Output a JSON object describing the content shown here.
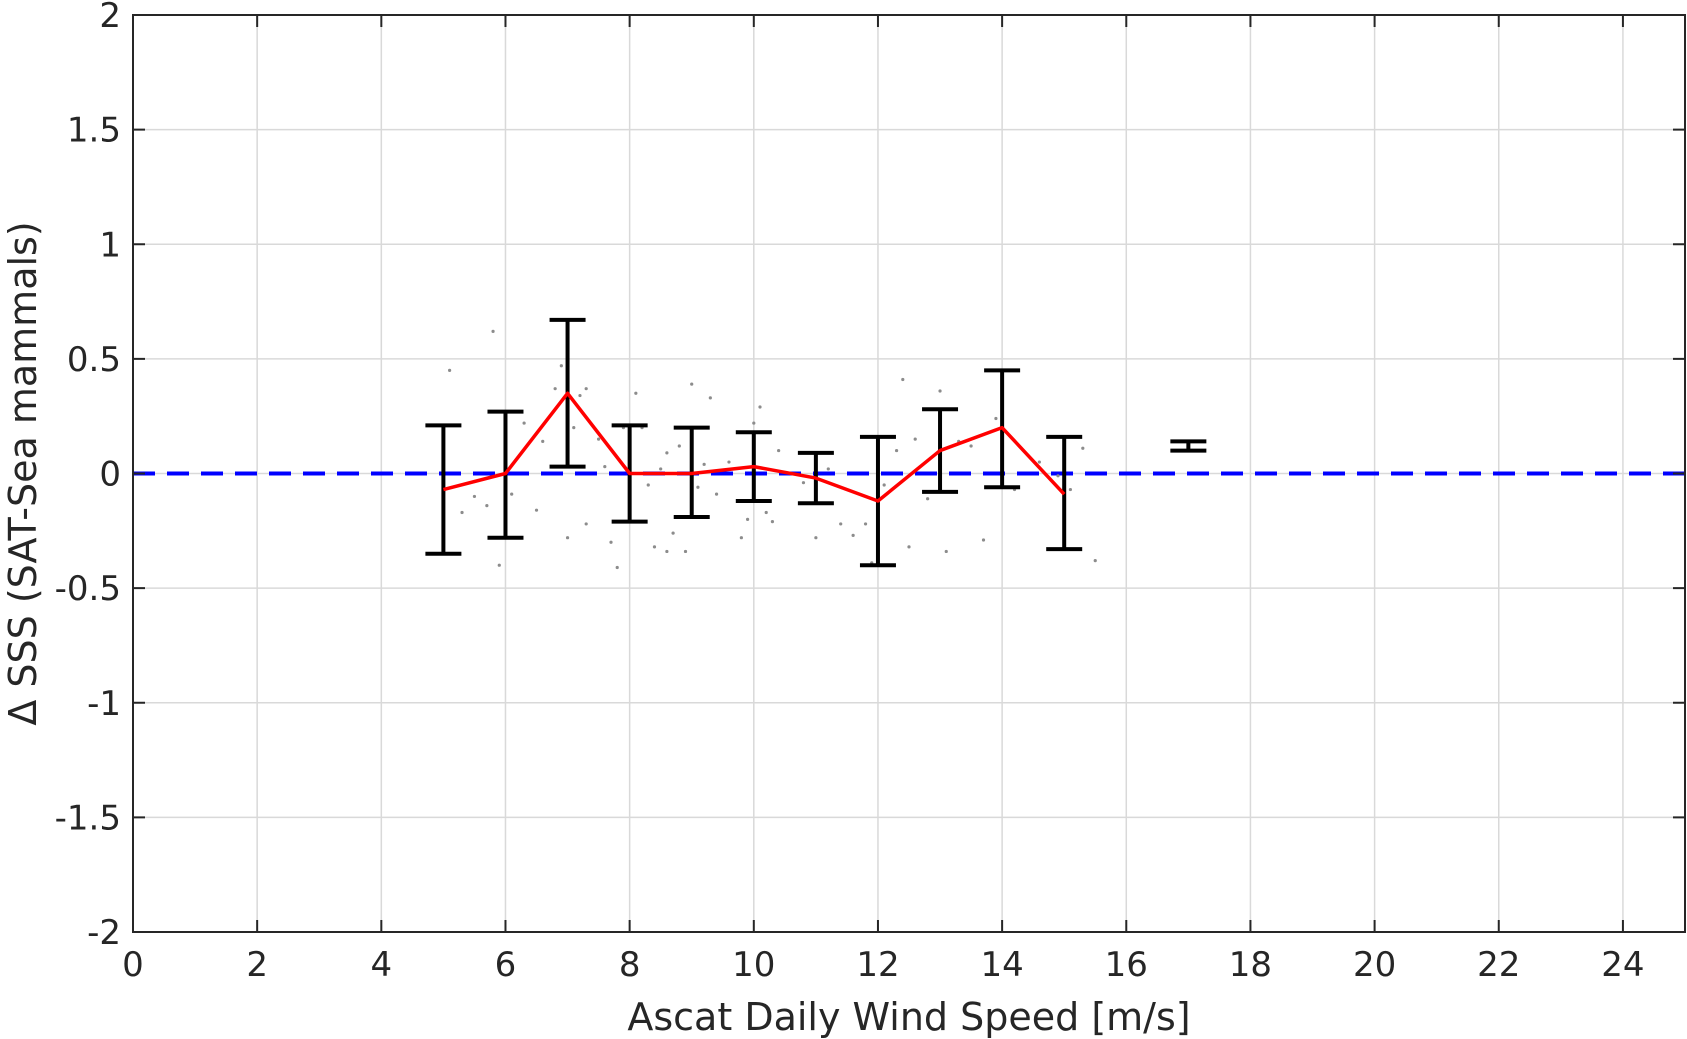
{
  "chart_data": {
    "type": "line",
    "xlabel": "Ascat Daily Wind Speed [m/s]",
    "ylabel": "Δ SSS (SAT-Sea mammals)",
    "xlim": [
      0,
      25
    ],
    "ylim": [
      -2,
      2
    ],
    "xticks": [
      0,
      2,
      4,
      6,
      8,
      10,
      12,
      14,
      16,
      18,
      20,
      22,
      24
    ],
    "yticks": [
      -2,
      -1.5,
      -1,
      -0.5,
      0,
      0.5,
      1,
      1.5,
      2
    ],
    "xtick_labels": [
      "0",
      "2",
      "4",
      "6",
      "8",
      "10",
      "12",
      "14",
      "16",
      "18",
      "20",
      "22",
      "24"
    ],
    "ytick_labels": [
      "-2",
      "-1.5",
      "-1",
      "-0.5",
      "0",
      "0.5",
      "1",
      "1.5",
      "2"
    ],
    "grid": true,
    "reference_line": {
      "y": 0,
      "color": "#0000ff",
      "style": "dashed"
    },
    "colors": {
      "mean": "#ff0000",
      "errorbar": "#000000",
      "scatter": "#8c8c8c",
      "reference": "#0000ff"
    },
    "series": [
      {
        "type": "errorbar",
        "x": [
          5,
          6,
          7,
          8,
          9,
          10,
          11,
          12,
          13,
          14,
          15,
          17
        ],
        "mean": [
          -0.07,
          0.0,
          0.35,
          0.0,
          0.0,
          0.03,
          -0.02,
          -0.12,
          0.1,
          0.2,
          -0.09,
          0.12
        ],
        "low": [
          -0.35,
          -0.28,
          0.03,
          -0.21,
          -0.19,
          -0.12,
          -0.13,
          -0.4,
          -0.08,
          -0.06,
          -0.33,
          0.1
        ],
        "high": [
          0.21,
          0.27,
          0.67,
          0.21,
          0.2,
          0.18,
          0.09,
          0.16,
          0.28,
          0.45,
          0.16,
          0.14
        ]
      },
      {
        "type": "line",
        "x": [
          5,
          6,
          7,
          8,
          9,
          10,
          11,
          12,
          13,
          14,
          15
        ],
        "y": [
          -0.07,
          0.0,
          0.35,
          0.0,
          0.0,
          0.03,
          -0.02,
          -0.12,
          0.1,
          0.2,
          -0.09
        ]
      },
      {
        "type": "scatter",
        "points": [
          [
            5.1,
            0.45
          ],
          [
            5.3,
            -0.17
          ],
          [
            5.5,
            -0.1
          ],
          [
            5.7,
            -0.14
          ],
          [
            5.8,
            0.62
          ],
          [
            5.9,
            -0.4
          ],
          [
            6.0,
            0.02
          ],
          [
            6.1,
            -0.09
          ],
          [
            6.3,
            0.22
          ],
          [
            6.5,
            -0.16
          ],
          [
            6.6,
            0.14
          ],
          [
            6.8,
            0.37
          ],
          [
            6.9,
            0.47
          ],
          [
            7.0,
            0.58
          ],
          [
            7.0,
            -0.28
          ],
          [
            7.1,
            0.2
          ],
          [
            7.2,
            0.34
          ],
          [
            7.3,
            0.37
          ],
          [
            7.3,
            -0.22
          ],
          [
            7.5,
            0.15
          ],
          [
            7.6,
            0.03
          ],
          [
            7.7,
            -0.3
          ],
          [
            7.8,
            -0.41
          ],
          [
            7.9,
            0.2
          ],
          [
            8.0,
            -0.09
          ],
          [
            8.1,
            0.35
          ],
          [
            8.2,
            0.2
          ],
          [
            8.3,
            -0.05
          ],
          [
            8.4,
            -0.32
          ],
          [
            8.5,
            0.02
          ],
          [
            8.6,
            -0.34
          ],
          [
            8.6,
            0.09
          ],
          [
            8.7,
            -0.26
          ],
          [
            8.8,
            0.12
          ],
          [
            8.9,
            -0.34
          ],
          [
            9.0,
            0.39
          ],
          [
            9.1,
            -0.06
          ],
          [
            9.2,
            0.04
          ],
          [
            9.3,
            0.33
          ],
          [
            9.4,
            -0.09
          ],
          [
            9.6,
            0.05
          ],
          [
            9.8,
            -0.28
          ],
          [
            9.9,
            -0.2
          ],
          [
            10.0,
            0.22
          ],
          [
            10.1,
            0.29
          ],
          [
            10.2,
            -0.17
          ],
          [
            10.3,
            -0.21
          ],
          [
            10.4,
            0.1
          ],
          [
            10.6,
            0.0
          ],
          [
            10.8,
            -0.04
          ],
          [
            11.0,
            -0.28
          ],
          [
            11.2,
            0.02
          ],
          [
            11.4,
            -0.22
          ],
          [
            11.6,
            -0.27
          ],
          [
            11.8,
            -0.22
          ],
          [
            11.9,
            -0.39
          ],
          [
            12.1,
            -0.05
          ],
          [
            12.3,
            0.1
          ],
          [
            12.4,
            0.41
          ],
          [
            12.5,
            -0.32
          ],
          [
            12.6,
            0.15
          ],
          [
            12.8,
            -0.11
          ],
          [
            13.0,
            0.36
          ],
          [
            13.1,
            -0.34
          ],
          [
            13.3,
            0.14
          ],
          [
            13.5,
            0.12
          ],
          [
            13.7,
            -0.29
          ],
          [
            13.9,
            0.24
          ],
          [
            14.2,
            -0.07
          ],
          [
            14.6,
            0.05
          ],
          [
            14.9,
            -0.01
          ],
          [
            15.1,
            -0.07
          ],
          [
            15.3,
            0.11
          ],
          [
            15.5,
            -0.38
          ]
        ]
      }
    ]
  }
}
